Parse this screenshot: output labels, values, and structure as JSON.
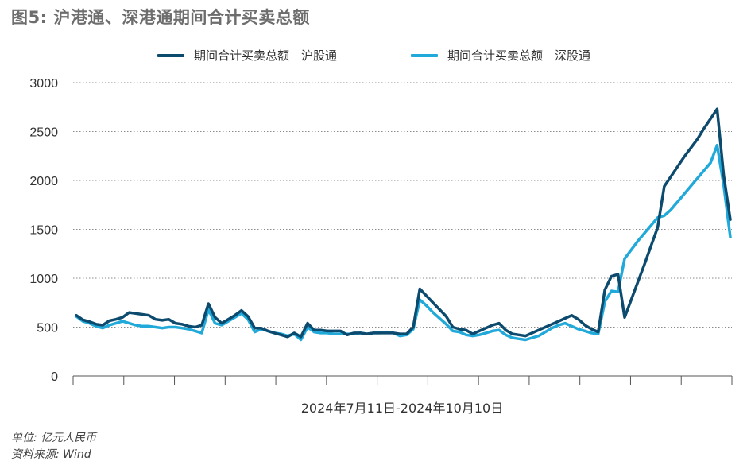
{
  "title": "图5: 沪港通、深港通期间合计买卖总额",
  "footnotes": {
    "unit": "单位: 亿元人民币",
    "source": "资料来源: Wind"
  },
  "chart_data": {
    "type": "line",
    "xlabel": "2024年7月11日-2024年10月10日",
    "ylabel": "",
    "ylim": [
      0,
      3000
    ],
    "yticks": [
      0,
      500,
      1000,
      1500,
      2000,
      2500,
      3000
    ],
    "grid": "horizontal-dotted",
    "legend_position": "top",
    "series": [
      {
        "name": "期间合计买卖总额　沪股通",
        "color": "#0c4a6e",
        "values": [
          620,
          575,
          555,
          530,
          520,
          565,
          580,
          600,
          650,
          640,
          630,
          620,
          580,
          570,
          580,
          540,
          530,
          510,
          500,
          520,
          740,
          600,
          540,
          580,
          620,
          670,
          610,
          490,
          490,
          460,
          440,
          420,
          400,
          440,
          400,
          540,
          470,
          470,
          460,
          460,
          460,
          420,
          440,
          440,
          430,
          440,
          440,
          440,
          440,
          430,
          430,
          500,
          890,
          820,
          750,
          680,
          610,
          500,
          480,
          470,
          430,
          460,
          490,
          520,
          540,
          470,
          430,
          420,
          410,
          440,
          470,
          500,
          530,
          560,
          590,
          620,
          580,
          520,
          480,
          450,
          880,
          1020,
          1040,
          600,
          780,
          960,
          1140,
          1330,
          1520,
          1940,
          2040,
          2140,
          2240,
          2330,
          2420,
          2530,
          2630,
          2730,
          2050,
          1600
        ],
        "color_label": "dark-blue"
      },
      {
        "name": "期间合计买卖总额　深股通",
        "color": "#20a9d9",
        "values": [
          610,
          560,
          540,
          510,
          490,
          520,
          540,
          560,
          540,
          520,
          510,
          510,
          500,
          490,
          500,
          500,
          490,
          480,
          460,
          440,
          680,
          540,
          520,
          560,
          600,
          640,
          580,
          450,
          480,
          460,
          440,
          430,
          410,
          430,
          370,
          500,
          450,
          440,
          440,
          430,
          430,
          430,
          430,
          440,
          430,
          440,
          440,
          450,
          440,
          410,
          420,
          480,
          780,
          720,
          650,
          590,
          530,
          460,
          450,
          420,
          410,
          420,
          440,
          460,
          470,
          420,
          390,
          380,
          370,
          390,
          410,
          450,
          490,
          520,
          540,
          510,
          480,
          460,
          440,
          430,
          760,
          870,
          860,
          1200,
          1290,
          1380,
          1460,
          1540,
          1620,
          1640,
          1700,
          1780,
          1860,
          1940,
          2020,
          2100,
          2180,
          2360,
          1950,
          1420
        ]
      }
    ]
  },
  "legend": [
    {
      "label": "期间合计买卖总额　沪股通",
      "color": "#0c4a6e"
    },
    {
      "label": "期间合计买卖总额　深股通",
      "color": "#20a9d9"
    }
  ]
}
